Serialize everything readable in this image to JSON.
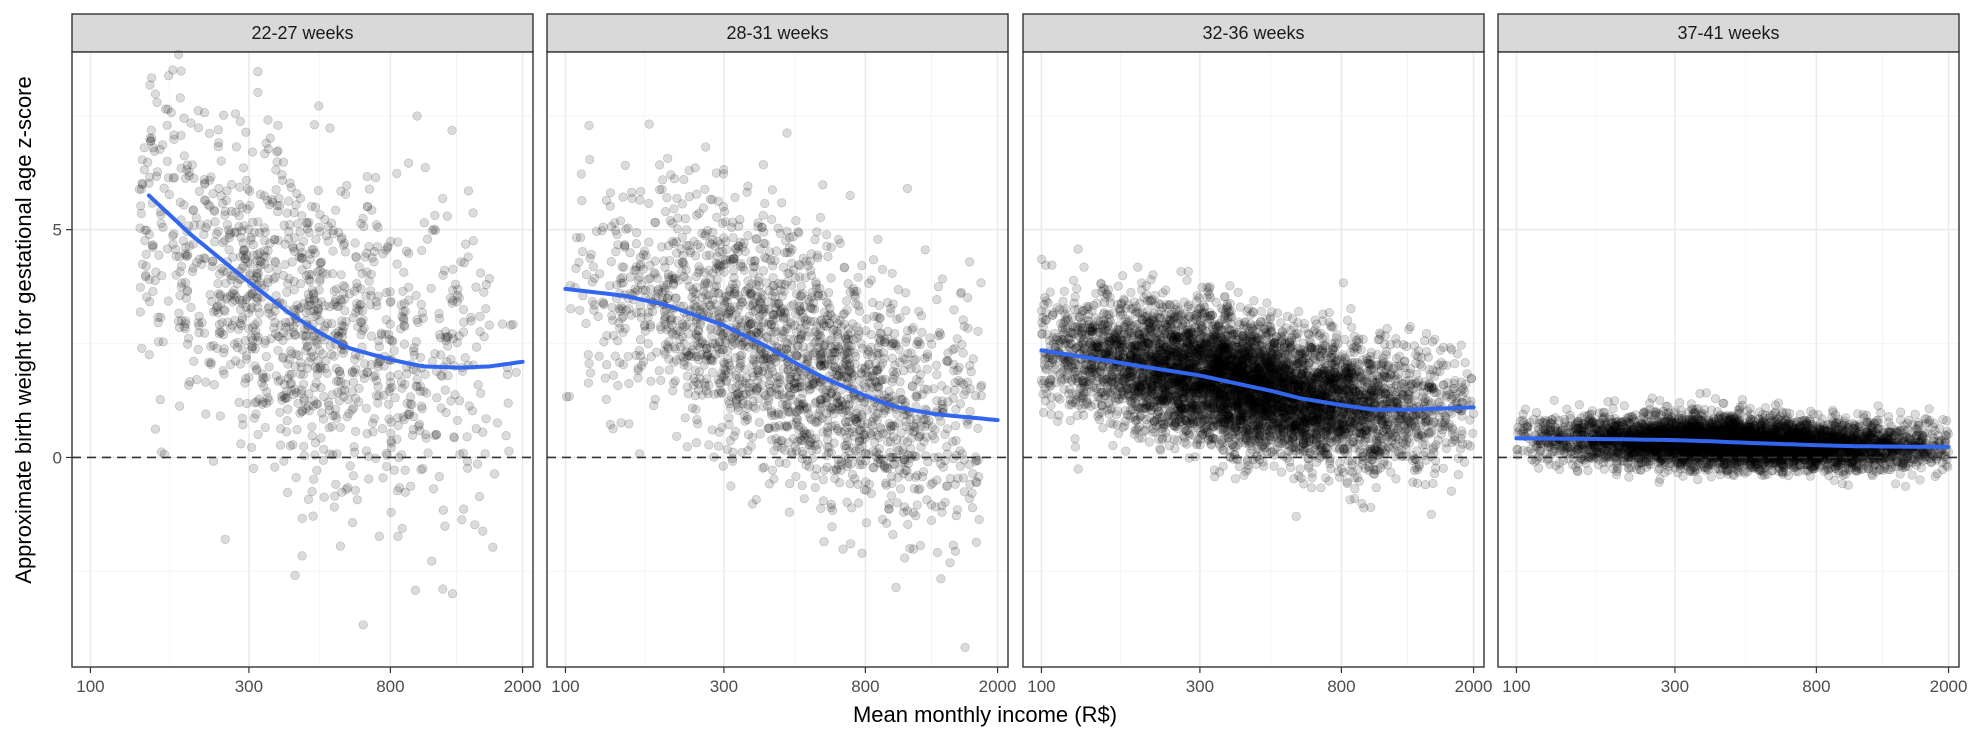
{
  "chart_data": {
    "type": "scatter",
    "xlabel": "Mean monthly income (R$)",
    "ylabel": "Approximate birth weight for gestational age z-score",
    "x_scale": "log10",
    "xlim": [
      88,
      2150
    ],
    "ylim": [
      -4.6,
      8.9
    ],
    "x_ticks": [
      100,
      300,
      800,
      2000
    ],
    "x_tick_labels": [
      "100",
      "300",
      "800",
      "2000"
    ],
    "y_ticks": [
      0,
      5
    ],
    "y_tick_labels": [
      "0",
      "5"
    ],
    "reference_line_y": 0,
    "colors": {
      "trend": "#3366ee",
      "points": "#000000",
      "strip": "#d9d9d9"
    },
    "panels": [
      {
        "label": "22-27 weeks",
        "n_points": 1200,
        "x_range": [
          140,
          2000
        ],
        "x_center": 420,
        "y_sd": 1.8,
        "trend_x": [
          150,
          200,
          300,
          400,
          500,
          600,
          800,
          1000,
          1300,
          1600,
          2000
        ],
        "trend_y": [
          5.75,
          4.9,
          3.85,
          3.15,
          2.7,
          2.4,
          2.15,
          2.0,
          1.97,
          2.0,
          2.1
        ]
      },
      {
        "label": "28-31 weeks",
        "n_points": 2000,
        "x_range": [
          100,
          1800
        ],
        "x_center": 470,
        "y_sd": 1.35,
        "trend_x": [
          100,
          150,
          200,
          300,
          400,
          500,
          600,
          800,
          1000,
          1300,
          2000
        ],
        "trend_y": [
          3.7,
          3.55,
          3.35,
          2.9,
          2.45,
          2.05,
          1.75,
          1.35,
          1.1,
          0.95,
          0.82
        ]
      },
      {
        "label": "32-36 weeks",
        "n_points": 6000,
        "x_range": [
          100,
          2000
        ],
        "x_center": 400,
        "y_sd": 0.72,
        "trend_x": [
          100,
          150,
          200,
          300,
          400,
          500,
          600,
          800,
          1000,
          1300,
          2000
        ],
        "trend_y": [
          2.35,
          2.15,
          2.0,
          1.8,
          1.6,
          1.45,
          1.3,
          1.15,
          1.05,
          1.05,
          1.1
        ]
      },
      {
        "label": "37-41 weeks",
        "n_points": 5000,
        "x_range": [
          100,
          2000
        ],
        "x_center": 480,
        "y_sd": 0.28,
        "trend_x": [
          100,
          150,
          200,
          300,
          400,
          500,
          600,
          800,
          1000,
          1300,
          2000
        ],
        "trend_y": [
          0.42,
          0.41,
          0.4,
          0.38,
          0.35,
          0.32,
          0.3,
          0.27,
          0.25,
          0.24,
          0.23
        ]
      }
    ]
  }
}
